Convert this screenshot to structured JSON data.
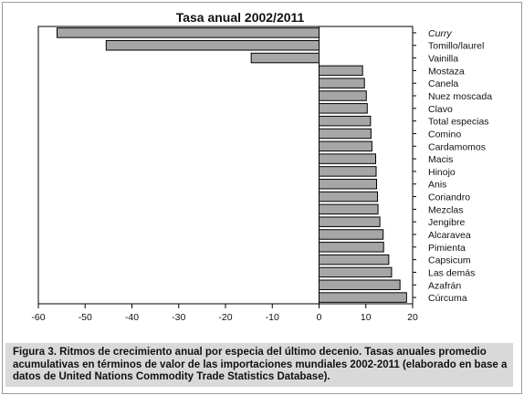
{
  "chart_data": {
    "type": "bar",
    "orientation": "horizontal",
    "title": "Tasa anual  2002/2011",
    "xlabel": "",
    "ylabel": "",
    "xlim": [
      -60,
      20
    ],
    "x_ticks": [
      -60,
      -50,
      -40,
      -30,
      -20,
      -10,
      0,
      10,
      20
    ],
    "grid": false,
    "bar_color": "#a6a6a6",
    "categories": [
      "Curry",
      "Tomillo/laurel",
      "Vainilla",
      "Mostaza",
      "Canela",
      "Nuez moscada",
      "Clavo",
      "Total especias",
      "Comino",
      "Cardamomos",
      "Macis",
      "Hinojo",
      "Anis",
      "Coriandro",
      "Mezclas",
      "Jengibre",
      "Alcaravea",
      "Pimienta",
      "Capsicum",
      "Las demás",
      "Azafrán",
      "Cúrcuma"
    ],
    "italic_categories": [
      "Curry"
    ],
    "values": [
      -56,
      -45.5,
      -14.5,
      9.3,
      9.7,
      10.1,
      10.3,
      11.0,
      11.1,
      11.3,
      12.1,
      12.2,
      12.3,
      12.5,
      12.6,
      13.0,
      13.7,
      13.8,
      14.9,
      15.5,
      17.3,
      18.7
    ]
  },
  "caption": {
    "label": "Figura 3.",
    "text": "Ritmos de crecimiento anual por especia del último decenio. Tasas anuales promedio acumulativas en términos de valor de las importaciones mundiales 2002-2011 (elaborado en base a datos de United Nations Commodity Trade Statistics Database)."
  }
}
